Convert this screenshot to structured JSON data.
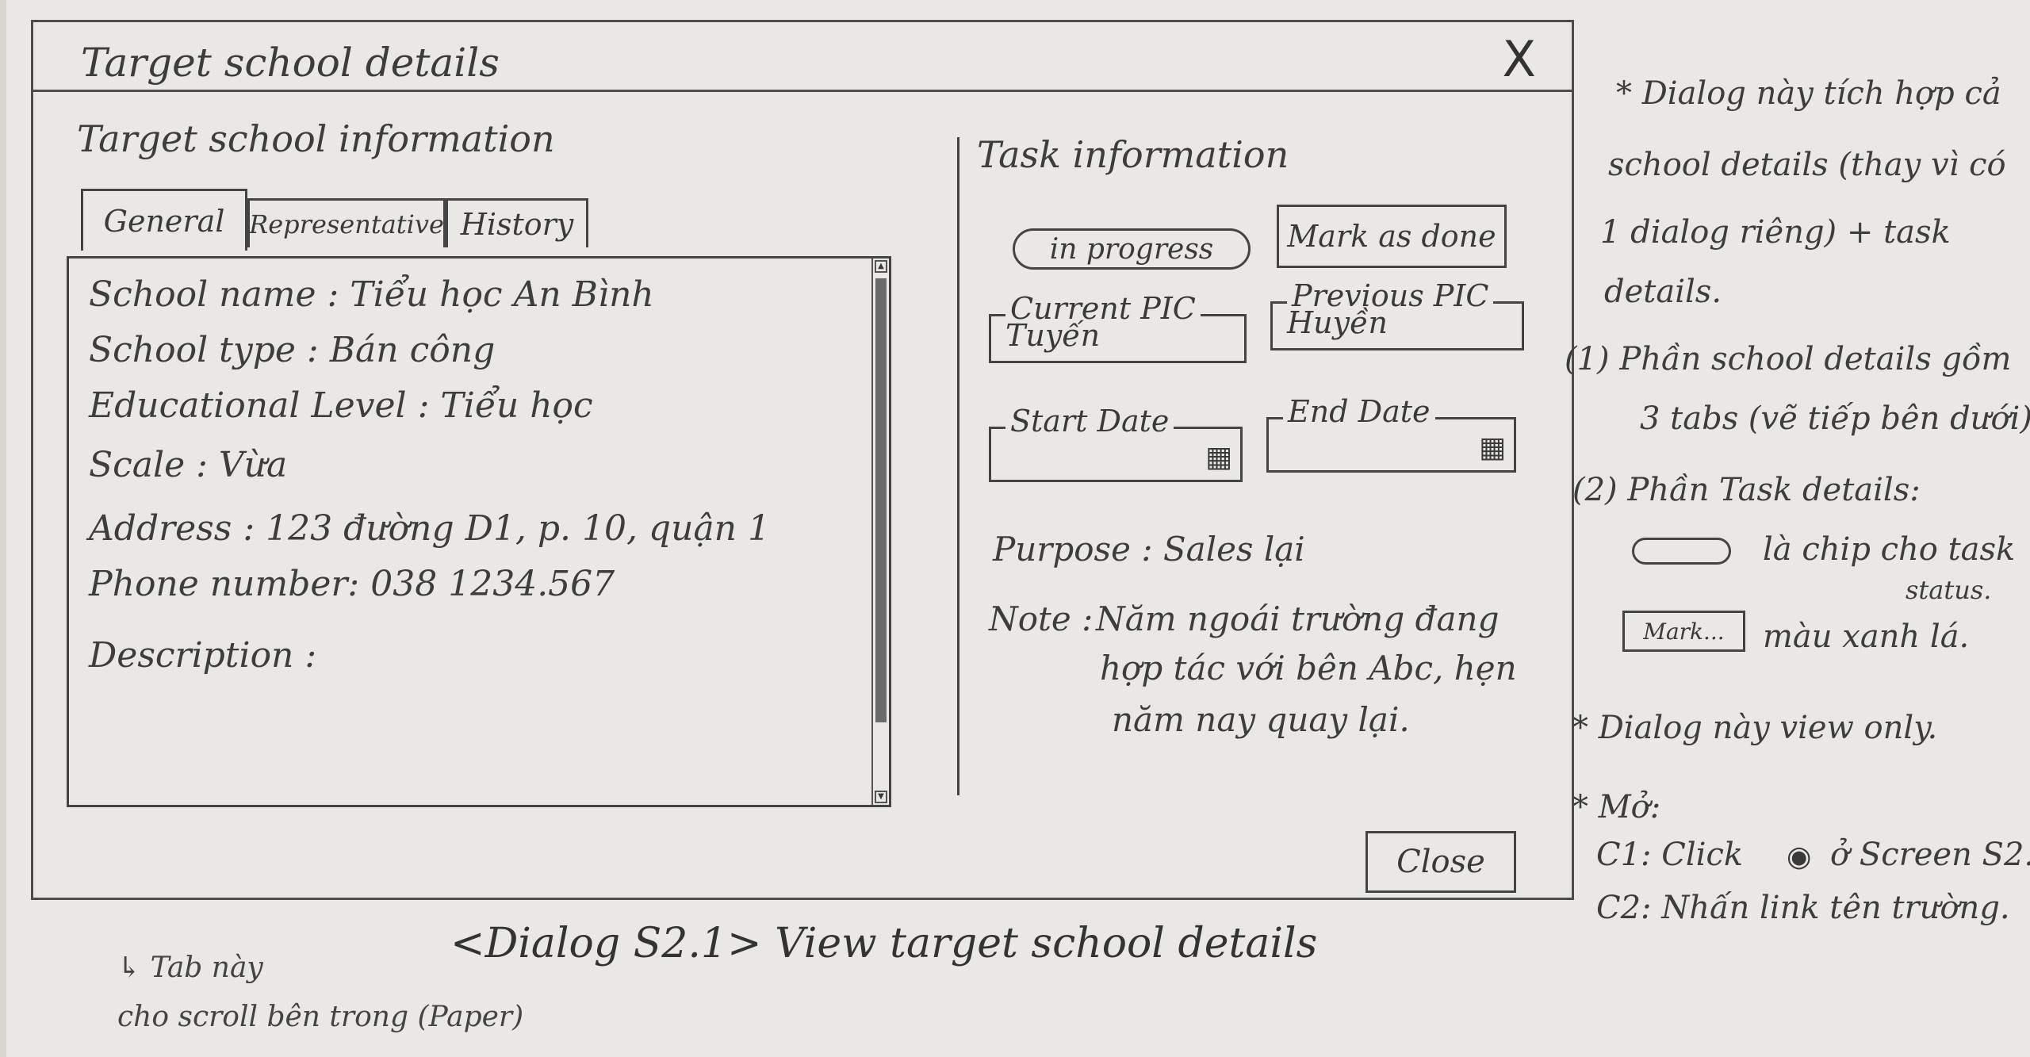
{
  "dialog": {
    "title": "Target school details",
    "close_icon": "X"
  },
  "school_info": {
    "title": "Target school information",
    "tabs": [
      "General",
      "Representative",
      "History"
    ],
    "fields": [
      "School name : Tiểu học An Bình",
      "School type : Bán công",
      "Educational Level : Tiểu học",
      "Scale : Vừa",
      "Address : 123 đường D1, p. 10, quận 1",
      "Phone number: 038 1234.567",
      "Description :"
    ]
  },
  "task_info": {
    "title": "Task information",
    "status_chip": "in progress",
    "mark_done_label": "Mark as done",
    "current_pic_label": "Current PIC",
    "current_pic_value": "Tuyến",
    "previous_pic_label": "Previous PIC",
    "previous_pic_value": "Huyền",
    "start_date_label": "Start Date",
    "end_date_label": "End Date",
    "purpose": "Purpose : Sales lại",
    "note_label": "Note :",
    "note_lines": [
      "Năm ngoái trường đang",
      "hợp tác với bên Abc, hẹn",
      "năm nay quay lại."
    ],
    "close_label": "Close"
  },
  "caption": "<Dialog S2.1> View target school details",
  "bottom_note": [
    "↳ Tab này",
    "cho scroll bên trong (Paper)"
  ],
  "side_notes": {
    "n1": [
      "* Dialog này tích hợp cả",
      "school details (thay vì có",
      "1 dialog riêng) + task",
      "details."
    ],
    "n2": [
      "(1) Phần school details gồm",
      "3 tabs (vẽ tiếp bên dưới)."
    ],
    "n3": "(2) Phần Task details:",
    "n4": [
      "là chip cho task",
      "status."
    ],
    "n5_chip": "Mark...",
    "n5": "màu xanh lá.",
    "n6": "* Dialog này view only.",
    "n7": "* Mở:",
    "c1": "C1: Click",
    "c1b": "ở Screen S2.",
    "c2": "C2: Nhấn link tên trường."
  }
}
